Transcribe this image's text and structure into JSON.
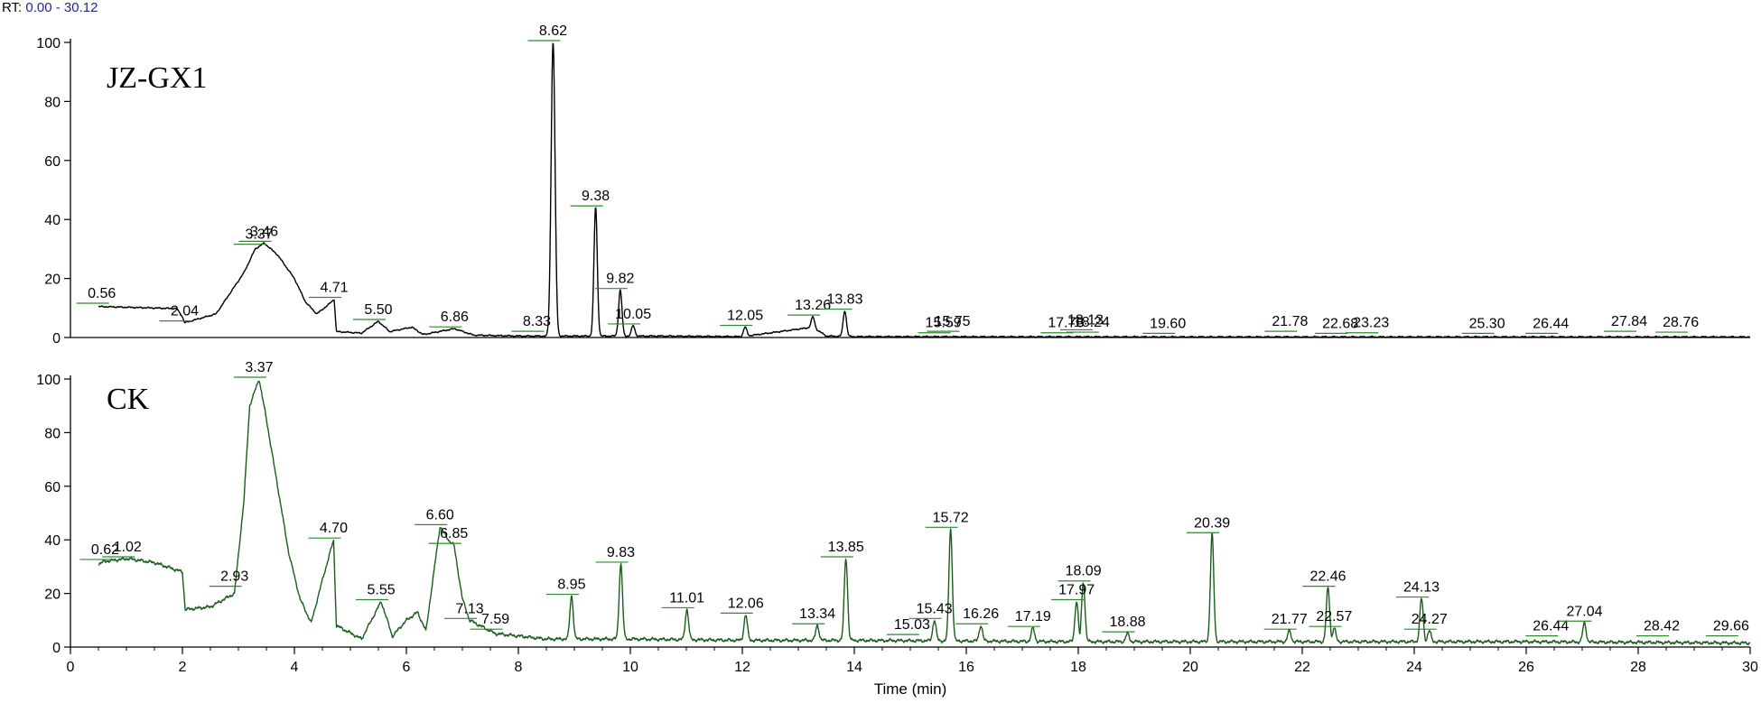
{
  "header": {
    "rt_label": "RT:",
    "rt_range": "0.00 - 30.12"
  },
  "chart_data": [
    {
      "type": "line",
      "sample_label": "JZ-GX1",
      "line_color": "#000000",
      "xlim": [
        0,
        30
      ],
      "ylim": [
        0,
        100
      ],
      "y_ticks": [
        0,
        20,
        40,
        60,
        80,
        100
      ],
      "baseline": [
        [
          0.5,
          10.5
        ],
        [
          1.9,
          9.8
        ],
        [
          2.0,
          7.0
        ],
        [
          2.04,
          5.0
        ],
        [
          2.6,
          8.0
        ],
        [
          3.1,
          22.0
        ],
        [
          3.3,
          30.0
        ],
        [
          3.46,
          32.0
        ],
        [
          3.7,
          28.0
        ],
        [
          4.0,
          20.0
        ],
        [
          4.2,
          12.0
        ],
        [
          4.4,
          8.0
        ],
        [
          4.6,
          11.0
        ],
        [
          4.71,
          13.0
        ],
        [
          4.75,
          2.0
        ],
        [
          5.2,
          1.5
        ],
        [
          5.5,
          5.5
        ],
        [
          5.7,
          2.0
        ],
        [
          6.1,
          3.5
        ],
        [
          6.3,
          1.0
        ],
        [
          6.86,
          3.0
        ],
        [
          7.2,
          0.8
        ],
        [
          8.0,
          0.5
        ],
        [
          8.62,
          0.5
        ],
        [
          9.0,
          0.5
        ],
        [
          10.5,
          0.5
        ],
        [
          12.0,
          0.3
        ],
        [
          13.26,
          3.5
        ],
        [
          13.5,
          0.5
        ],
        [
          14.0,
          0.3
        ],
        [
          20.0,
          0.2
        ],
        [
          30.0,
          0.2
        ]
      ],
      "peaks": [
        {
          "rt": 0.56,
          "height": 11,
          "label": "0.56"
        },
        {
          "rt": 2.04,
          "height": 5,
          "label": "2.04"
        },
        {
          "rt": 3.37,
          "height": 31,
          "label": "3.37"
        },
        {
          "rt": 3.46,
          "height": 32,
          "label": "3.46"
        },
        {
          "rt": 4.71,
          "height": 13,
          "label": "4.71"
        },
        {
          "rt": 5.5,
          "height": 5.5,
          "label": "5.50"
        },
        {
          "rt": 6.86,
          "height": 3,
          "label": "6.86"
        },
        {
          "rt": 8.33,
          "height": 1.5,
          "label": "8.33"
        },
        {
          "rt": 8.62,
          "height": 100,
          "label": "8.62"
        },
        {
          "rt": 9.38,
          "height": 44,
          "label": "9.38"
        },
        {
          "rt": 9.82,
          "height": 16,
          "label": "9.82"
        },
        {
          "rt": 10.05,
          "height": 4,
          "label": "10.05"
        },
        {
          "rt": 12.05,
          "height": 3.5,
          "label": "12.05"
        },
        {
          "rt": 13.26,
          "height": 7,
          "label": "13.26"
        },
        {
          "rt": 13.83,
          "height": 9,
          "label": "13.83"
        },
        {
          "rt": 15.59,
          "height": 1.0,
          "label": "15.59"
        },
        {
          "rt": 15.75,
          "height": 1.5,
          "label": "15.75"
        },
        {
          "rt": 17.78,
          "height": 1.0,
          "label": "17.78"
        },
        {
          "rt": 18.13,
          "height": 2.0,
          "label": "18.13"
        },
        {
          "rt": 18.24,
          "height": 1.2,
          "label": "18.24"
        },
        {
          "rt": 19.6,
          "height": 0.8,
          "label": "19.60"
        },
        {
          "rt": 21.78,
          "height": 1.5,
          "label": "21.78"
        },
        {
          "rt": 22.68,
          "height": 0.8,
          "label": "22.68"
        },
        {
          "rt": 23.23,
          "height": 1.0,
          "label": "23.23"
        },
        {
          "rt": 25.3,
          "height": 0.8,
          "label": "25.30"
        },
        {
          "rt": 26.44,
          "height": 0.8,
          "label": "26.44"
        },
        {
          "rt": 27.84,
          "height": 1.5,
          "label": "27.84"
        },
        {
          "rt": 28.76,
          "height": 1.2,
          "label": "28.76"
        }
      ]
    },
    {
      "type": "line",
      "sample_label": "CK",
      "line_color": "#1a5c1a",
      "xlim": [
        0,
        30
      ],
      "ylim": [
        0,
        100
      ],
      "y_ticks": [
        0,
        20,
        40,
        60,
        80,
        100
      ],
      "xlabel": "Time (min)",
      "x_ticks": [
        0,
        2,
        4,
        6,
        8,
        10,
        12,
        14,
        16,
        18,
        20,
        22,
        24,
        26,
        28,
        30
      ],
      "baseline": [
        [
          0.5,
          31.0
        ],
        [
          0.62,
          32.0
        ],
        [
          1.02,
          33.0
        ],
        [
          1.5,
          31.5
        ],
        [
          2.0,
          28.0
        ],
        [
          2.05,
          14.0
        ],
        [
          2.5,
          15.0
        ],
        [
          2.93,
          20.0
        ],
        [
          3.1,
          55.0
        ],
        [
          3.2,
          90.0
        ],
        [
          3.37,
          100.0
        ],
        [
          3.5,
          85.0
        ],
        [
          3.7,
          60.0
        ],
        [
          3.9,
          35.0
        ],
        [
          4.1,
          18.0
        ],
        [
          4.3,
          9.0
        ],
        [
          4.5,
          25.0
        ],
        [
          4.7,
          40.0
        ],
        [
          4.75,
          8.0
        ],
        [
          5.2,
          3.0
        ],
        [
          5.55,
          17.0
        ],
        [
          5.75,
          4.0
        ],
        [
          6.0,
          10.0
        ],
        [
          6.2,
          13.0
        ],
        [
          6.35,
          6.0
        ],
        [
          6.6,
          45.0
        ],
        [
          6.75,
          40.0
        ],
        [
          6.85,
          38.0
        ],
        [
          7.0,
          18.0
        ],
        [
          7.13,
          10.0
        ],
        [
          7.59,
          5.0
        ],
        [
          8.5,
          3.0
        ],
        [
          10.0,
          3.0
        ],
        [
          12.0,
          2.5
        ],
        [
          14.0,
          2.5
        ],
        [
          18.0,
          2.0
        ],
        [
          22.0,
          2.0
        ],
        [
          26.0,
          2.0
        ],
        [
          30.0,
          1.5
        ]
      ],
      "peaks": [
        {
          "rt": 0.62,
          "height": 32,
          "label": "0.62"
        },
        {
          "rt": 1.02,
          "height": 33,
          "label": "1.02"
        },
        {
          "rt": 2.93,
          "height": 22,
          "label": "2.93"
        },
        {
          "rt": 3.37,
          "height": 100,
          "label": "3.37"
        },
        {
          "rt": 4.7,
          "height": 40,
          "label": "4.70"
        },
        {
          "rt": 5.55,
          "height": 17,
          "label": "5.55"
        },
        {
          "rt": 6.6,
          "height": 45,
          "label": "6.60"
        },
        {
          "rt": 6.85,
          "height": 38,
          "label": "6.85"
        },
        {
          "rt": 7.13,
          "height": 10,
          "label": "7.13"
        },
        {
          "rt": 7.59,
          "height": 6,
          "label": "7.59"
        },
        {
          "rt": 8.95,
          "height": 19,
          "label": "8.95"
        },
        {
          "rt": 9.83,
          "height": 31,
          "label": "9.83"
        },
        {
          "rt": 11.01,
          "height": 14,
          "label": "11.01"
        },
        {
          "rt": 12.06,
          "height": 12,
          "label": "12.06"
        },
        {
          "rt": 13.34,
          "height": 8,
          "label": "13.34"
        },
        {
          "rt": 13.85,
          "height": 33,
          "label": "13.85"
        },
        {
          "rt": 15.03,
          "height": 4,
          "label": "15.03"
        },
        {
          "rt": 15.43,
          "height": 10,
          "label": "15.43"
        },
        {
          "rt": 15.72,
          "height": 44,
          "label": "15.72"
        },
        {
          "rt": 16.26,
          "height": 8,
          "label": "16.26"
        },
        {
          "rt": 17.19,
          "height": 7,
          "label": "17.19"
        },
        {
          "rt": 17.97,
          "height": 17,
          "label": "17.97"
        },
        {
          "rt": 18.09,
          "height": 24,
          "label": "18.09"
        },
        {
          "rt": 18.88,
          "height": 5,
          "label": "18.88"
        },
        {
          "rt": 20.39,
          "height": 42,
          "label": "20.39"
        },
        {
          "rt": 21.77,
          "height": 6,
          "label": "21.77"
        },
        {
          "rt": 22.46,
          "height": 22,
          "label": "22.46"
        },
        {
          "rt": 22.57,
          "height": 7,
          "label": "22.57"
        },
        {
          "rt": 24.13,
          "height": 18,
          "label": "24.13"
        },
        {
          "rt": 24.27,
          "height": 6,
          "label": "24.27"
        },
        {
          "rt": 26.44,
          "height": 3.5,
          "label": "26.44"
        },
        {
          "rt": 27.04,
          "height": 9,
          "label": "27.04"
        },
        {
          "rt": 28.42,
          "height": 3.5,
          "label": "28.42"
        },
        {
          "rt": 29.66,
          "height": 3.5,
          "label": "29.66"
        }
      ]
    }
  ]
}
